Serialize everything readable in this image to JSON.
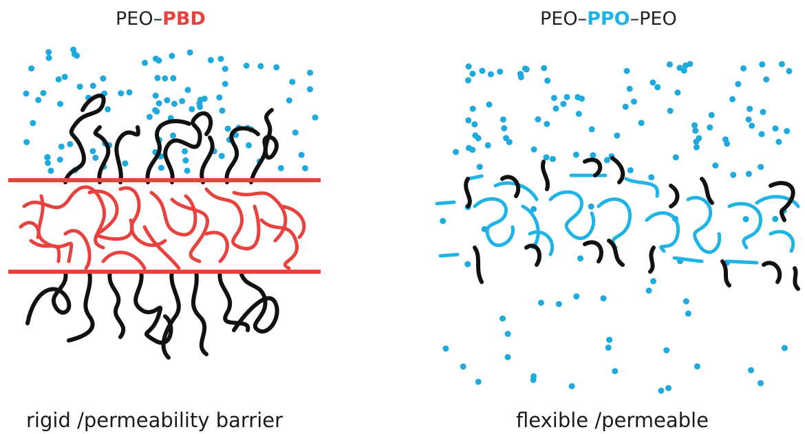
{
  "left_panel": {
    "title_prefix": "PEO–",
    "title_highlight": "PBD",
    "caption": "rigid /permeability barrier"
  },
  "right_panel": {
    "title_prefix": "PEO–",
    "title_highlight": "PPO",
    "title_suffix": "–PEO",
    "caption": "flexible /permeable"
  },
  "colors": {
    "peo_chain": "#111111",
    "pbd_chain": "#e8423f",
    "ppo_chain": "#1eb4e6",
    "water_dot": "#1eaadc",
    "barrier_line": "#e8423f"
  }
}
